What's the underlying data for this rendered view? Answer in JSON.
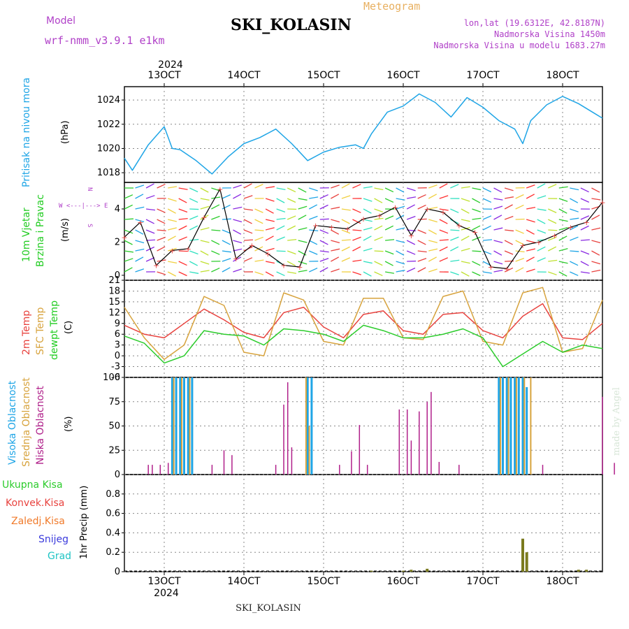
{
  "header": {
    "model_label": "Model",
    "model_name": "wrf-nmm_v3.9.1 e1km",
    "station": "SKI_KOLASIN",
    "meteogram": "Meteogram",
    "lonlat": "lon,lat (19.6312E, 42.8187N)",
    "altitude": "Nadmorska Visina 1450m",
    "model_altitude": "Nadmorska Visina u modelu 1683.27m",
    "footer_station": "SKI_KOLASIN",
    "watermark": "made by Angel",
    "year_label": "2024"
  },
  "colors": {
    "pressure": "#1fa5e6",
    "temp2m": "#e8433f",
    "sfc_temp": "#d7a33d",
    "dewpoint": "#2ccc2c",
    "high_cloud": "#1fa5e6",
    "mid_cloud": "#d7a33d",
    "low_cloud": "#b0208a",
    "precip": "#7a7a1e",
    "wind_label": "#22cc22",
    "purple": "#b040c8",
    "compass": "#b040c8"
  },
  "axis": {
    "dates": [
      "13OCT",
      "14OCT",
      "15OCT",
      "16OCT",
      "17OCT",
      "18OCT"
    ]
  },
  "panels": {
    "pressure": {
      "label": "Pritisak na nivou mora",
      "unit": "(hPa)",
      "yticks": [
        "1018",
        "1020",
        "1022",
        "1024"
      ]
    },
    "wind": {
      "label1": "10m Vjetar",
      "label2": "Brzina i Pravac",
      "unit": "(m/s)",
      "yticks": [
        "0",
        "2",
        "4"
      ],
      "compass_top": "N",
      "compass_mid": "W <---|---> E",
      "compass_bottom": "S"
    },
    "temp": {
      "label1": "2m Temp",
      "label2": "SFC Temp",
      "label3": "dewpt Temp",
      "unit": "(C)",
      "yticks": [
        "-6",
        "-3",
        "0",
        "3",
        "6",
        "9",
        "12",
        "15",
        "18",
        "21"
      ]
    },
    "cloud": {
      "label1": "Visoka Oblacnost",
      "label2": "Srednja Oblacnost",
      "label3": "Niska Oblacnost",
      "unit": "(%)",
      "yticks": [
        "0",
        "25",
        "50",
        "75",
        "100"
      ]
    },
    "precip": {
      "legend": [
        "Ukupna Kisa",
        "Konvek.Kisa",
        "Zaledj.Kisa",
        "Snijeg",
        "Grad"
      ],
      "legend_colors": [
        "#2ccc2c",
        "#e8433f",
        "#f07a2a",
        "#3a3adc",
        "#1fc4c4"
      ],
      "unit": "1hr Precip (mm)",
      "yticks": [
        "0",
        "0.2",
        "0.4",
        "0.6",
        "0.8"
      ]
    }
  },
  "chart_data": [
    {
      "type": "line",
      "name": "pressure",
      "ylim": [
        1017.2,
        1025.1
      ],
      "points_x_days": [
        12.5,
        12.6,
        12.8,
        13.0,
        13.1,
        13.2,
        13.4,
        13.6,
        13.8,
        14.0,
        14.2,
        14.4,
        14.6,
        14.8,
        15.0,
        15.2,
        15.4,
        15.5,
        15.6,
        15.8,
        16.0,
        16.2,
        16.4,
        16.6,
        16.8,
        17.0,
        17.2,
        17.4,
        17.5,
        17.6,
        17.8,
        18.0,
        18.2,
        18.4,
        18.5
      ],
      "series": [
        {
          "name": "",
          "values": [
            1019.2,
            1018.2,
            1020.3,
            1021.8,
            1020.0,
            1019.9,
            1019.0,
            1017.9,
            1019.3,
            1020.4,
            1020.9,
            1021.6,
            1020.4,
            1019.0,
            1019.7,
            1020.1,
            1020.3,
            1020.0,
            1021.2,
            1023.0,
            1023.5,
            1024.5,
            1023.8,
            1022.6,
            1024.2,
            1023.4,
            1022.3,
            1021.6,
            1020.4,
            1022.3,
            1023.6,
            1024.3,
            1023.7,
            1022.9,
            1022.5
          ]
        }
      ]
    },
    {
      "type": "line",
      "name": "wind_speed",
      "ylim": [
        -0.3,
        5.6
      ],
      "points_x_days": [
        12.5,
        12.7,
        12.9,
        13.1,
        13.3,
        13.5,
        13.7,
        13.9,
        14.1,
        14.3,
        14.5,
        14.7,
        14.9,
        15.1,
        15.3,
        15.5,
        15.7,
        15.9,
        16.1,
        16.3,
        16.5,
        16.7,
        16.9,
        17.1,
        17.3,
        17.5,
        17.7,
        17.9,
        18.1,
        18.3,
        18.5
      ],
      "series": [
        {
          "name": "",
          "values": [
            2.3,
            3.2,
            0.6,
            1.5,
            1.6,
            3.5,
            5.2,
            1.0,
            1.8,
            1.3,
            0.6,
            0.5,
            3.0,
            2.9,
            2.8,
            3.4,
            3.6,
            4.1,
            2.4,
            4.0,
            3.8,
            3.0,
            2.6,
            0.5,
            0.4,
            1.8,
            2.0,
            2.4,
            2.9,
            3.2,
            4.4
          ]
        }
      ]
    },
    {
      "type": "line",
      "name": "temperature",
      "ylim": [
        -6,
        21
      ],
      "x_days": [
        12.5,
        12.75,
        13.0,
        13.25,
        13.5,
        13.75,
        14.0,
        14.25,
        14.5,
        14.75,
        15.0,
        15.25,
        15.5,
        15.75,
        16.0,
        16.25,
        16.5,
        16.75,
        17.0,
        17.25,
        17.5,
        17.75,
        18.0,
        18.25,
        18.5
      ],
      "series": [
        {
          "name": "",
          "values": [
            8.5,
            6.0,
            5.0,
            9.0,
            13.0,
            10.0,
            6.5,
            5.0,
            12.0,
            13.5,
            8.0,
            5.0,
            11.5,
            12.5,
            7.0,
            6.0,
            11.5,
            12.0,
            7.0,
            5.0,
            11.0,
            14.5,
            5.0,
            4.5,
            9.0
          ]
        },
        {
          "name": "",
          "values": [
            13.5,
            5.0,
            -1.0,
            3.0,
            16.5,
            14.0,
            1.0,
            0.0,
            17.5,
            15.5,
            4.0,
            3.0,
            16.0,
            16.0,
            5.0,
            4.5,
            16.5,
            18.0,
            4.0,
            3.0,
            17.5,
            19.0,
            1.0,
            2.0,
            15.5
          ]
        },
        {
          "name": "",
          "values": [
            5.5,
            3.5,
            -2.0,
            0.0,
            7.0,
            6.0,
            5.5,
            3.0,
            7.5,
            7.0,
            6.0,
            4.0,
            8.5,
            7.0,
            5.0,
            5.0,
            6.0,
            7.5,
            5.0,
            -3.0,
            0.5,
            4.0,
            1.0,
            3.0,
            2.0
          ]
        }
      ]
    },
    {
      "type": "bar",
      "name": "cloud_cover",
      "ylim": [
        0,
        100
      ],
      "series": [
        {
          "name": "",
          "x_days": [
            13.1,
            13.15,
            13.2,
            13.25,
            13.3,
            13.35,
            14.8,
            14.85,
            17.2,
            17.25,
            17.3,
            17.35,
            17.4,
            17.45,
            17.5,
            17.55
          ],
          "values": [
            100,
            100,
            100,
            100,
            100,
            100,
            100,
            100,
            100,
            100,
            100,
            100,
            100,
            100,
            100,
            90
          ]
        },
        {
          "name": "",
          "x_days": [
            13.12,
            13.22,
            13.32,
            14.78,
            14.82,
            17.22,
            17.32,
            17.42,
            17.52,
            17.6
          ],
          "values": [
            100,
            100,
            100,
            100,
            50,
            100,
            100,
            100,
            100,
            100
          ]
        },
        {
          "name": "",
          "x_days": [
            12.8,
            12.85,
            12.95,
            13.05,
            13.6,
            13.75,
            13.85,
            14.4,
            14.5,
            14.55,
            14.6,
            15.2,
            15.35,
            15.45,
            15.55,
            15.95,
            16.05,
            16.1,
            16.2,
            16.3,
            16.35,
            16.45,
            16.7,
            17.75,
            18.5,
            18.65
          ],
          "values": [
            10,
            10,
            10,
            12,
            10,
            25,
            20,
            10,
            72,
            95,
            28,
            10,
            24,
            51,
            10,
            67,
            67,
            35,
            65,
            75,
            85,
            13,
            10,
            10,
            80,
            12
          ]
        }
      ]
    },
    {
      "type": "bar",
      "name": "precipitation",
      "ylim": [
        0,
        1.0
      ],
      "series": [
        {
          "name": "",
          "x_days": [
            15.6,
            16.0,
            16.1,
            16.3,
            17.5,
            17.55,
            18.2,
            18.3
          ],
          "values": [
            0.01,
            0.01,
            0.02,
            0.03,
            0.34,
            0.2,
            0.02,
            0.02
          ]
        }
      ]
    }
  ]
}
